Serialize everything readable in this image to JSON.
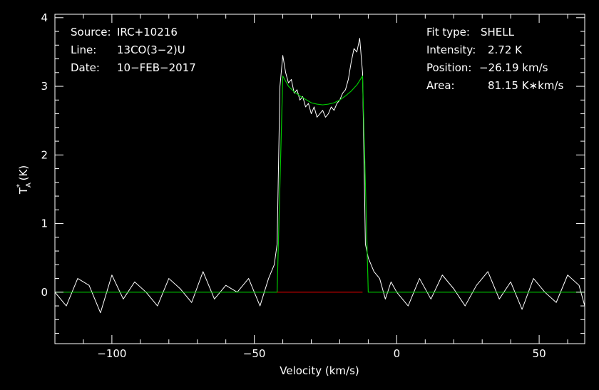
{
  "chart_data": {
    "type": "line",
    "xlabel": "Velocity (km/s)",
    "ylabel": {
      "base": "T",
      "sub": "A",
      "sup": "*",
      "unit": " (K)"
    },
    "xlim": [
      -120,
      66
    ],
    "ylim": [
      -0.75,
      4.05
    ],
    "xticks": [
      -100,
      -50,
      0,
      50
    ],
    "xtick_labels": [
      "−100",
      "−50",
      "0",
      "50"
    ],
    "yticks": [
      0,
      1,
      2,
      3,
      4
    ],
    "ytick_labels": [
      "0",
      "1",
      "2",
      "3",
      "4"
    ],
    "grid": false,
    "colors": {
      "background": "#000000",
      "frame": "#ffffff",
      "spectrum": "#ffffff",
      "fit": "#00c800",
      "baseline": "#d40000"
    },
    "info_left": [
      {
        "key": "Source:",
        "value": "IRC+10216"
      },
      {
        "key": "Line:",
        "value": "13CO(3−2)U"
      },
      {
        "key": "Date:",
        "value": "10−FEB−2017"
      }
    ],
    "info_right": [
      {
        "key": "Fit type:",
        "value": "SHELL"
      },
      {
        "key": "Intensity:",
        "value": "2.72 K"
      },
      {
        "key": "Position:",
        "value": "−26.19 km/s"
      },
      {
        "key": "Area:",
        "value": "81.15 K∗km/s"
      }
    ],
    "series": [
      {
        "role": "spectrum",
        "x": [
          -120,
          -116,
          -112,
          -108,
          -104,
          -100,
          -96,
          -92,
          -88,
          -84,
          -80,
          -76,
          -72,
          -68,
          -64,
          -60,
          -56,
          -52,
          -48,
          -45,
          -43,
          -42,
          -41,
          -40,
          -39,
          -38,
          -37,
          -36,
          -35,
          -34,
          -33,
          -32,
          -31,
          -30,
          -29,
          -28,
          -27,
          -26,
          -25,
          -24,
          -23,
          -22,
          -21,
          -20,
          -19,
          -18,
          -17,
          -16,
          -15,
          -14,
          -13,
          -12,
          -11,
          -10,
          -9,
          -8,
          -6,
          -4,
          -2,
          0,
          4,
          8,
          12,
          16,
          20,
          24,
          28,
          32,
          36,
          40,
          44,
          48,
          52,
          56,
          60,
          64,
          66
        ],
        "y": [
          0.0,
          -0.2,
          0.2,
          0.1,
          -0.3,
          0.25,
          -0.1,
          0.15,
          0.0,
          -0.2,
          0.2,
          0.05,
          -0.15,
          0.3,
          -0.1,
          0.1,
          0.0,
          0.2,
          -0.2,
          0.2,
          0.4,
          0.7,
          3.0,
          3.45,
          3.2,
          3.05,
          3.1,
          2.9,
          2.95,
          2.8,
          2.85,
          2.7,
          2.75,
          2.6,
          2.7,
          2.55,
          2.6,
          2.65,
          2.55,
          2.6,
          2.7,
          2.65,
          2.75,
          2.8,
          2.9,
          2.95,
          3.1,
          3.35,
          3.55,
          3.5,
          3.7,
          3.2,
          0.7,
          0.5,
          0.4,
          0.3,
          0.2,
          -0.1,
          0.15,
          0.0,
          -0.2,
          0.2,
          -0.1,
          0.25,
          0.05,
          -0.2,
          0.1,
          0.3,
          -0.1,
          0.15,
          -0.25,
          0.2,
          0.0,
          -0.15,
          0.25,
          0.1,
          -0.2
        ]
      },
      {
        "role": "fit",
        "x": [
          -120,
          -42,
          -40,
          -38,
          -36,
          -34,
          -32,
          -30,
          -28,
          -26,
          -24,
          -22,
          -20,
          -18,
          -16,
          -14,
          -12,
          -10,
          66
        ],
        "y": [
          0,
          0,
          3.15,
          3.0,
          2.92,
          2.86,
          2.81,
          2.76,
          2.74,
          2.73,
          2.74,
          2.76,
          2.8,
          2.86,
          2.93,
          3.02,
          3.15,
          0,
          0
        ]
      },
      {
        "role": "baseline",
        "x": [
          -42,
          -12
        ],
        "y": [
          0,
          0
        ]
      }
    ]
  }
}
